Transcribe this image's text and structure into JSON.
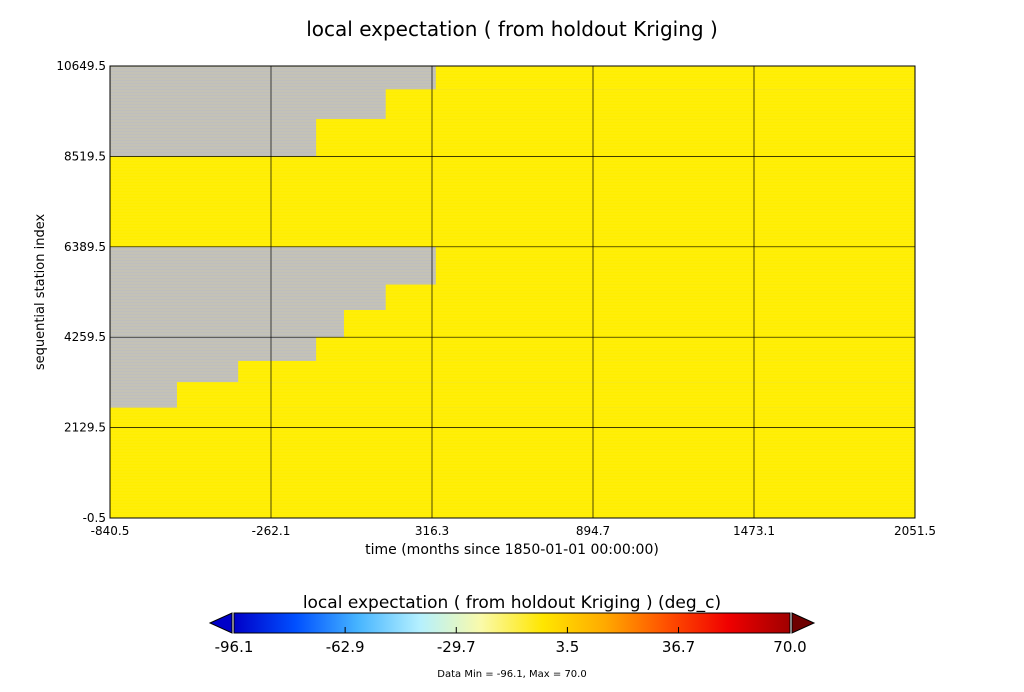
{
  "chart_data": {
    "type": "heatmap",
    "title": "local expectation ( from holdout Kriging )",
    "xlabel": "time (months since 1850-01-01 00:00:00)",
    "ylabel": "sequential station index",
    "x_ticks": [
      "-840.5",
      "-262.1",
      "316.3",
      "894.7",
      "1473.1",
      "2051.5"
    ],
    "y_ticks": [
      "-0.5",
      "2129.5",
      "4259.5",
      "6389.5",
      "8519.5",
      "10649.5"
    ],
    "xlim": [
      -840.5,
      2051.5
    ],
    "ylim": [
      -0.5,
      10649.5
    ],
    "grid": true,
    "missing_color": "#bebebe",
    "data_color": "#ffee00",
    "coverage": [
      {
        "y_range": [
          -0.5,
          2129.5
        ],
        "data_from_x": -840.5
      },
      {
        "y_range": [
          2129.5,
          2600
        ],
        "data_from_x": -840.5
      },
      {
        "y_range": [
          2600,
          3200
        ],
        "data_from_x": -600
      },
      {
        "y_range": [
          3200,
          3700
        ],
        "data_from_x": -380
      },
      {
        "y_range": [
          3700,
          4259.5
        ],
        "data_from_x": -100
      },
      {
        "y_range": [
          4259.5,
          4900
        ],
        "data_from_x": 0
      },
      {
        "y_range": [
          4900,
          5500
        ],
        "data_from_x": 150
      },
      {
        "y_range": [
          5500,
          6389.5
        ],
        "data_from_x": 330
      },
      {
        "y_range": [
          6389.5,
          8519.5
        ],
        "data_from_x": -840.5
      },
      {
        "y_range": [
          8519.5,
          9400
        ],
        "data_from_x": -100
      },
      {
        "y_range": [
          9400,
          10100
        ],
        "data_from_x": 150
      },
      {
        "y_range": [
          10100,
          10649.5
        ],
        "data_from_x": 330
      }
    ],
    "colorbar": {
      "title": "local expectation ( from holdout Kriging ) (deg_c)",
      "ticks": [
        "-96.1",
        "-62.9",
        "-29.7",
        "3.5",
        "36.7",
        "70.0"
      ],
      "range": [
        -96.1,
        70.0
      ],
      "colors": [
        "#0000c8",
        "#0050ff",
        "#46b4ff",
        "#b4f0ff",
        "#fafaaa",
        "#ffe600",
        "#ffaa00",
        "#ff5000",
        "#f00000",
        "#a00000"
      ],
      "extend_low_color": "#0000c8",
      "extend_high_color": "#6e0000"
    },
    "note": "Data Min = -96.1, Max = 70.0"
  }
}
